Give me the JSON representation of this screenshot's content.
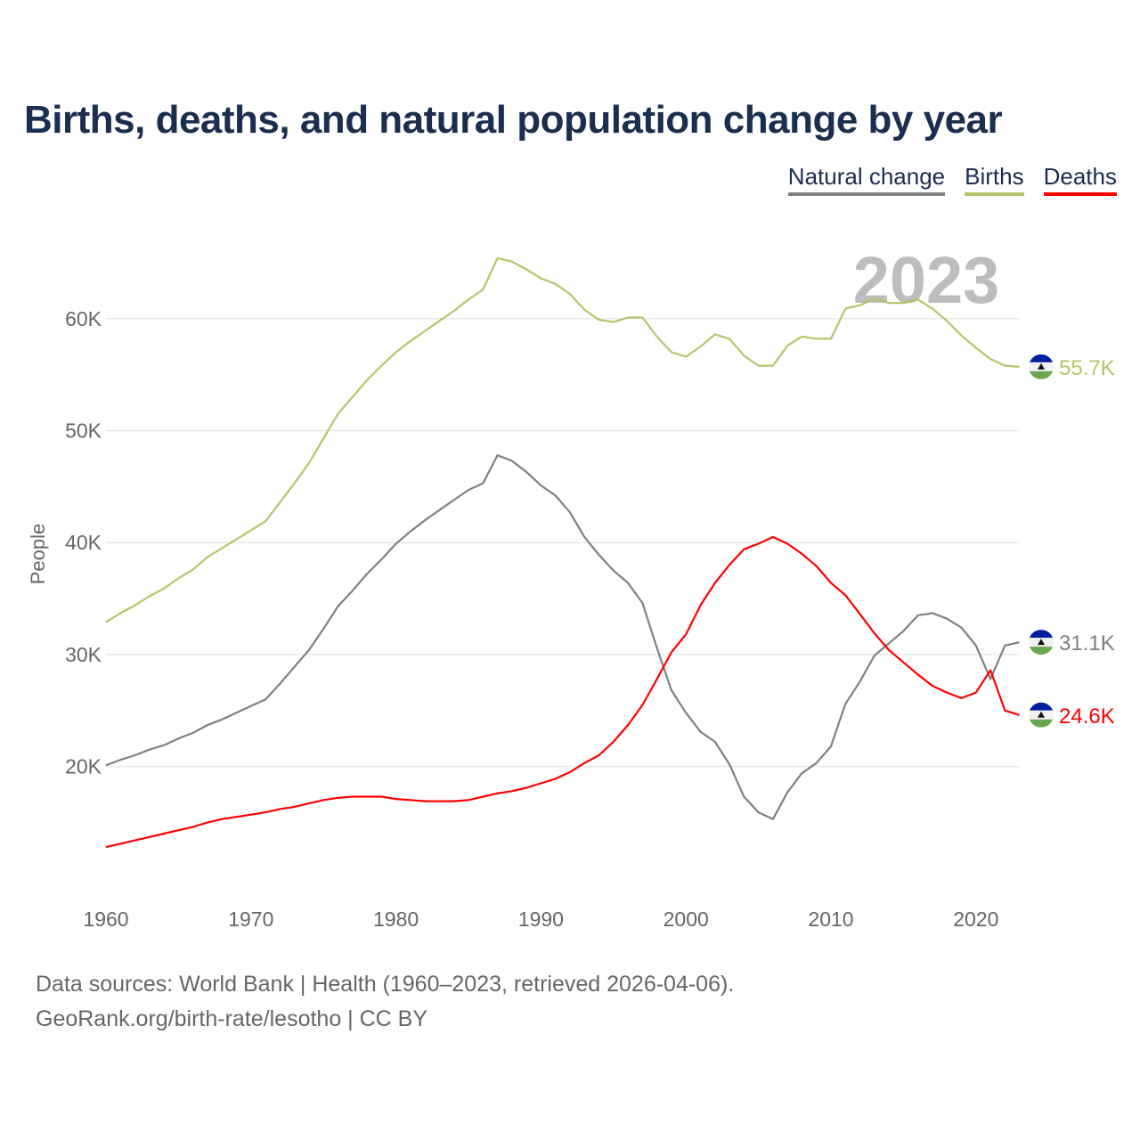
{
  "title": "Births, deaths, and natural population change by year",
  "legend": [
    {
      "label": "Natural change",
      "color": "#808080"
    },
    {
      "label": "Births",
      "color": "#b5c46a"
    },
    {
      "label": "Deaths",
      "color": "#ff0000"
    }
  ],
  "year_label": "2023",
  "footer": {
    "line1": "Data sources: World Bank | Health (1960–2023, retrieved 2026-04-06).",
    "line2": "GeoRank.org/birth-rate/lesotho | CC BY"
  },
  "chart_data": {
    "type": "line",
    "title": "Births, deaths, and natural population change by year",
    "xlabel": "",
    "ylabel": "People",
    "xlim": [
      1960,
      2023
    ],
    "ylim": [
      10000,
      70000
    ],
    "x_ticks": [
      "1960",
      "1970",
      "1980",
      "1990",
      "2000",
      "2010",
      "2020"
    ],
    "y_ticks": [
      {
        "value": 20000,
        "label": "20K"
      },
      {
        "value": 30000,
        "label": "30K"
      },
      {
        "value": 40000,
        "label": "40K"
      },
      {
        "value": 50000,
        "label": "50K"
      },
      {
        "value": 60000,
        "label": "60K"
      }
    ],
    "grid": true,
    "legend_position": "top-right",
    "x_start": 1960,
    "series": [
      {
        "name": "Natural change",
        "color": "#808080",
        "end_label": "31.1K",
        "values": [
          20.1,
          20.6,
          21.0,
          21.5,
          21.9,
          22.5,
          23.0,
          23.7,
          24.2,
          24.8,
          25.4,
          26.0,
          27.4,
          28.9,
          30.4,
          32.3,
          34.3,
          35.7,
          37.2,
          38.5,
          39.9,
          41.0,
          42.0,
          42.9,
          43.8,
          44.7,
          45.3,
          47.8,
          47.3,
          46.3,
          45.1,
          44.2,
          42.7,
          40.5,
          38.9,
          37.5,
          36.4,
          34.6,
          30.6,
          26.8,
          24.8,
          23.1,
          22.2,
          20.2,
          17.3,
          15.9,
          15.3,
          17.7,
          19.4,
          20.3,
          21.8,
          25.6,
          27.6,
          29.9,
          31.0,
          32.1,
          33.5,
          33.7,
          33.2,
          32.4,
          30.8,
          27.8,
          30.8,
          31.1
        ]
      },
      {
        "name": "Births",
        "color": "#b5c46a",
        "end_label": "55.7K",
        "values": [
          32.9,
          33.7,
          34.4,
          35.2,
          35.9,
          36.8,
          37.6,
          38.7,
          39.5,
          40.3,
          41.1,
          41.9,
          43.6,
          45.3,
          47.1,
          49.3,
          51.5,
          53.0,
          54.5,
          55.8,
          57.0,
          58.0,
          58.9,
          59.8,
          60.7,
          61.7,
          62.6,
          65.4,
          65.1,
          64.4,
          63.6,
          63.1,
          62.2,
          60.8,
          59.9,
          59.7,
          60.1,
          60.1,
          58.4,
          57.0,
          56.6,
          57.5,
          58.6,
          58.2,
          56.7,
          55.8,
          55.8,
          57.6,
          58.4,
          58.2,
          58.2,
          60.9,
          61.2,
          61.8,
          61.4,
          61.4,
          61.7,
          60.9,
          59.8,
          58.5,
          57.4,
          56.4,
          55.8,
          55.7
        ]
      },
      {
        "name": "Deaths",
        "color": "#ff0000",
        "end_label": "24.6K",
        "values": [
          12.8,
          13.1,
          13.4,
          13.7,
          14.0,
          14.3,
          14.6,
          15.0,
          15.3,
          15.5,
          15.7,
          15.9,
          16.2,
          16.4,
          16.7,
          17.0,
          17.2,
          17.3,
          17.3,
          17.3,
          17.1,
          17.0,
          16.9,
          16.9,
          16.9,
          17.0,
          17.3,
          17.6,
          17.8,
          18.1,
          18.5,
          18.9,
          19.5,
          20.3,
          21.0,
          22.2,
          23.7,
          25.5,
          27.8,
          30.2,
          31.8,
          34.4,
          36.4,
          38.0,
          39.4,
          39.9,
          40.5,
          39.9,
          39.0,
          37.9,
          36.4,
          35.3,
          33.6,
          31.9,
          30.4,
          29.3,
          28.2,
          27.2,
          26.6,
          26.1,
          26.6,
          28.6,
          25.0,
          24.6
        ]
      }
    ],
    "value_unit": "thousands of people"
  }
}
